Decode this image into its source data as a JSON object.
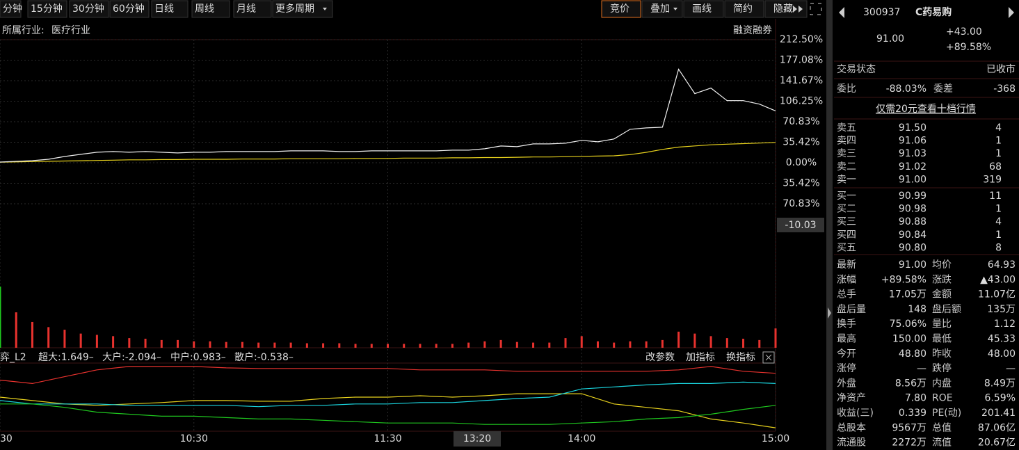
{
  "toolbar": {
    "periods": [
      "分钟",
      "15分钟",
      "30分钟",
      "60分钟",
      "日线",
      "周线",
      "月线",
      "更多周期"
    ],
    "tools": [
      "竞价",
      "叠加",
      "画线",
      "简约",
      "隐藏"
    ]
  },
  "chart": {
    "industry_label": "所属行业:",
    "industry": "医疗行业",
    "margin_link": "融资融券",
    "ylim": [
      -212.5,
      212.5
    ],
    "yticks": [
      {
        "value": 212.5,
        "label": "212.50%"
      },
      {
        "value": 177.08,
        "label": "177.08%"
      },
      {
        "value": 141.67,
        "label": "141.67%"
      },
      {
        "value": 106.25,
        "label": "106.25%"
      },
      {
        "value": 70.83,
        "label": "70.83%"
      },
      {
        "value": 35.42,
        "label": "35.42%"
      },
      {
        "value": 0,
        "label": "0.00%"
      },
      {
        "value": -35.42,
        "label": "35.42%"
      },
      {
        "value": -70.83,
        "label": "70.83%"
      }
    ],
    "cursor_value": "-10.03",
    "xlim": [
      0,
      240
    ],
    "xticks": [
      {
        "value": 0,
        "label": "30"
      },
      {
        "value": 60,
        "label": "10:30"
      },
      {
        "value": 120,
        "label": "11:30"
      },
      {
        "value": 180,
        "label": "14:00"
      },
      {
        "value": 240,
        "label": "15:00"
      }
    ],
    "cursor_time": "13:20",
    "x": [
      0,
      5,
      10,
      15,
      20,
      25,
      30,
      35,
      40,
      45,
      50,
      55,
      60,
      65,
      70,
      75,
      80,
      85,
      90,
      95,
      100,
      105,
      110,
      115,
      120,
      125,
      130,
      135,
      140,
      145,
      150,
      155,
      160,
      165,
      170,
      175,
      180,
      185,
      190,
      195,
      200,
      205,
      210,
      215,
      220,
      225,
      230,
      235,
      240
    ],
    "price_pct": [
      1.2,
      2.4,
      3.6,
      6,
      10.8,
      14.5,
      18.1,
      19.3,
      18.1,
      19.3,
      18.1,
      16.9,
      18.1,
      18.1,
      19.3,
      19.3,
      19.3,
      19.3,
      20.5,
      20.5,
      20.5,
      19.3,
      19.3,
      20.5,
      20.5,
      20.5,
      20.5,
      20.5,
      21.7,
      21.7,
      24.1,
      28.9,
      27.7,
      32.5,
      32.5,
      33.7,
      38.6,
      36.1,
      41,
      57.8,
      60.2,
      61.4,
      161.4,
      119.3,
      128.9,
      107.2,
      107.2,
      101.2,
      89.58
    ],
    "avg_pct": [
      1,
      1.5,
      2,
      2.5,
      3,
      3.5,
      4,
      4.5,
      5,
      5,
      5.5,
      5.5,
      6,
      6,
      6,
      6.5,
      6.5,
      6.5,
      7,
      7,
      7,
      7,
      7.5,
      7.5,
      7.5,
      8,
      8,
      8,
      8.5,
      8.5,
      9,
      9,
      9.5,
      10,
      10,
      10.5,
      11,
      11.5,
      12,
      14,
      18,
      23,
      27,
      29,
      31,
      32,
      33,
      34,
      35
    ],
    "volume": [
      95,
      55,
      40,
      32,
      28,
      22,
      20,
      18,
      15,
      14,
      12,
      12,
      10,
      10,
      9,
      9,
      8,
      8,
      8,
      7,
      7,
      7,
      6,
      6,
      6,
      6,
      6,
      6,
      6,
      8,
      10,
      12,
      9,
      8,
      8,
      15,
      18,
      10,
      8,
      10,
      10,
      12,
      25,
      22,
      18,
      15,
      14,
      12,
      30
    ]
  },
  "indicator": {
    "name": "弈_L2",
    "buttons": [
      "改参数",
      "加指标",
      "换指标"
    ],
    "ylim": [
      0,
      100
    ],
    "x": [
      0,
      10,
      20,
      30,
      40,
      50,
      60,
      70,
      80,
      90,
      100,
      110,
      120,
      130,
      140,
      150,
      160,
      170,
      180,
      190,
      200,
      210,
      220,
      230,
      240
    ],
    "series": [
      {
        "label": "超大:1.649–",
        "color": "#e8322e",
        "values": [
          75,
          70,
          80,
          90,
          95,
          95,
          95,
          93,
          92,
          92,
          92,
          92,
          92,
          90,
          90,
          90,
          88,
          88,
          88,
          88,
          88,
          90,
          95,
          88,
          85
        ]
      },
      {
        "label": "大户:-2.094–",
        "color": "#e8d21d",
        "values": [
          50,
          45,
          40,
          38,
          40,
          42,
          45,
          45,
          44,
          44,
          48,
          50,
          50,
          52,
          50,
          52,
          55,
          55,
          55,
          40,
          35,
          30,
          18,
          12,
          5
        ]
      },
      {
        "label": "中户:0.983–",
        "color": "#1ad6e0",
        "values": [
          45,
          40,
          40,
          40,
          38,
          38,
          38,
          38,
          36,
          38,
          38,
          40,
          40,
          42,
          42,
          45,
          48,
          50,
          62,
          65,
          68,
          70,
          70,
          72,
          70
        ]
      },
      {
        "label": "散户:-0.538–",
        "color": "#1fc81f",
        "values": [
          40,
          40,
          35,
          28,
          25,
          22,
          22,
          20,
          18,
          18,
          16,
          14,
          12,
          12,
          12,
          10,
          10,
          10,
          12,
          14,
          18,
          20,
          25,
          32,
          38
        ]
      }
    ]
  },
  "quote": {
    "code": "300937",
    "name": "C药易购",
    "price": "91.00",
    "change": "+43.00",
    "change_pct": "+89.58%",
    "status_label": "交易状态",
    "status": "已收市",
    "ratio_label": "委比",
    "ratio": "-88.03%",
    "diff_label": "委差",
    "diff": "-368",
    "promo": "仅需20元查看十档行情",
    "book": [
      [
        "卖五",
        "91.50",
        "4"
      ],
      [
        "卖四",
        "91.06",
        "1"
      ],
      [
        "卖三",
        "91.03",
        "1"
      ],
      [
        "卖二",
        "91.02",
        "68"
      ],
      [
        "卖一",
        "91.00",
        "319"
      ],
      [
        "买一",
        "90.99",
        "11"
      ],
      [
        "买二",
        "90.98",
        "1"
      ],
      [
        "买三",
        "90.88",
        "4"
      ],
      [
        "买四",
        "90.84",
        "1"
      ],
      [
        "买五",
        "90.80",
        "8"
      ]
    ],
    "stats": [
      [
        "最新",
        "91.00",
        "均价",
        "64.93"
      ],
      [
        "涨幅",
        "+89.58%",
        "涨跌",
        "▲43.00"
      ],
      [
        "总手",
        "17.05万",
        "金额",
        "11.07亿"
      ],
      [
        "盘后量",
        "148",
        "盘后额",
        "135万"
      ],
      [
        "换手",
        "75.06%",
        "量比",
        "1.12"
      ],
      [
        "最高",
        "150.00",
        "最低",
        "45.33"
      ],
      [
        "今开",
        "48.80",
        "昨收",
        "48.00"
      ],
      [
        "涨停",
        "—",
        "跌停",
        "—"
      ],
      [
        "外盘",
        "8.56万",
        "内盘",
        "8.49万"
      ],
      [
        "净资产",
        "7.80",
        "ROE",
        "6.59%"
      ],
      [
        "收益(三)",
        "0.339",
        "PE(动)",
        "201.41"
      ],
      [
        "总股本",
        "9567万",
        "总值",
        "87.06亿"
      ],
      [
        "流通股",
        "2272万",
        "流值",
        "20.67亿"
      ]
    ]
  }
}
